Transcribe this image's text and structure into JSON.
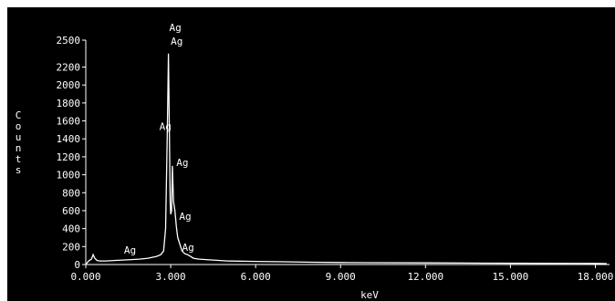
{
  "chart_data": {
    "type": "line",
    "xlabel": "keV",
    "ylabel": "Counts",
    "xlim": [
      0,
      18.5
    ],
    "ylim": [
      0,
      2500
    ],
    "x_ticks": [
      0,
      3,
      6,
      9,
      12,
      15,
      18
    ],
    "x_tick_labels": [
      "0.000",
      "3.000",
      "6.000",
      "9.000",
      "12.000",
      "15.000",
      "18.000"
    ],
    "y_ticks": [
      0,
      200,
      400,
      600,
      800,
      1000,
      1200,
      1400,
      1600,
      1800,
      2000,
      2200,
      2500
    ],
    "y_tick_labels": [
      "0",
      "200",
      "400",
      "600",
      "800",
      "1000",
      "1200",
      "1400",
      "1600",
      "1800",
      "2000",
      "2200",
      "2500"
    ],
    "grid": false,
    "colors": {
      "background": "#000000",
      "trace": "#ffffff",
      "text": "#ffffff"
    },
    "series": [
      {
        "x": [
          0.0,
          0.1,
          0.2,
          0.26,
          0.32,
          0.4,
          0.5,
          0.7,
          1.0,
          1.3,
          1.6,
          1.9,
          2.2,
          2.5,
          2.65,
          2.75,
          2.82,
          2.88,
          2.92,
          2.95,
          2.98,
          3.0,
          3.03,
          3.06,
          3.1,
          3.15,
          3.2,
          3.25,
          3.3,
          3.35,
          3.4,
          3.5,
          3.6,
          3.7,
          3.8,
          4.0,
          4.5,
          5.0,
          6.0,
          7.0,
          8.0,
          9.0,
          10.0,
          12.0,
          14.0,
          16.0,
          18.0,
          18.4
        ],
        "y": [
          0,
          40,
          60,
          110,
          70,
          45,
          40,
          40,
          45,
          50,
          55,
          60,
          70,
          90,
          110,
          150,
          400,
          1500,
          2350,
          1600,
          700,
          560,
          600,
          1100,
          700,
          600,
          420,
          300,
          250,
          200,
          150,
          120,
          110,
          90,
          70,
          60,
          50,
          40,
          35,
          30,
          25,
          22,
          20,
          18,
          15,
          13,
          12,
          10
        ]
      }
    ],
    "annotations": [
      {
        "text": "Ag",
        "x": 2.95,
        "y": 2600
      },
      {
        "text": "Ag",
        "x": 3.0,
        "y": 2450
      },
      {
        "text": "Ag",
        "x": 2.6,
        "y": 1500
      },
      {
        "text": "Ag",
        "x": 3.2,
        "y": 1100
      },
      {
        "text": "Ag",
        "x": 3.3,
        "y": 500
      },
      {
        "text": "Ag",
        "x": 3.4,
        "y": 150
      },
      {
        "text": "Ag",
        "x": 1.35,
        "y": 120
      }
    ]
  }
}
